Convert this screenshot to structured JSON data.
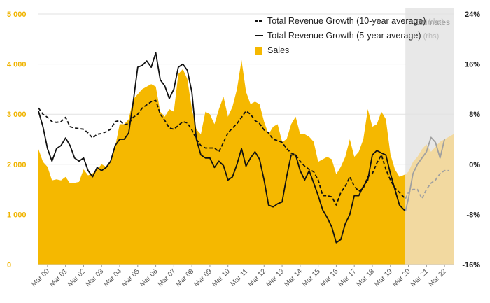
{
  "chart_data": {
    "type": "area",
    "title": "",
    "estimates_label": "Estimates",
    "estimates_start": 2020.33,
    "estimates_end": 2023.0,
    "x_range": [
      2000.0,
      2023.0
    ],
    "x_tick_labels": [
      "Mar 00",
      "Mar 01",
      "Mar 02",
      "Mar 03",
      "Mar 04",
      "Mar 05",
      "Mar 06",
      "Mar 07",
      "Mar 08",
      "Mar 09",
      "Mar 10",
      "Mar 11",
      "Mar 12",
      "Mar 13",
      "Mar 14",
      "Mar 15",
      "Mar 16",
      "Mar 17",
      "Mar 18",
      "Mar 19",
      "Mar 20",
      "Mar 21",
      "Mar 22"
    ],
    "left_axis": {
      "ylim": [
        0,
        5000
      ],
      "ticks": [
        "0",
        "1 000",
        "2 000",
        "3 000",
        "4 000",
        "5 000"
      ],
      "color": "#f0b400"
    },
    "right_axis": {
      "ylim": [
        -16,
        24
      ],
      "ticks": [
        "-16%",
        "-8%",
        "0%",
        "8%",
        "16%",
        "24%"
      ],
      "color": "#222222"
    },
    "legend": [
      {
        "label": "Total Revenue Growth (10-year average)",
        "suffix": "(rhs)",
        "style": "dashed"
      },
      {
        "label": "Total Revenue Growth (5-year average)",
        "suffix": "(rhs)",
        "style": "solid"
      },
      {
        "label": "Sales",
        "suffix": "",
        "style": "area"
      }
    ],
    "colors": {
      "sales": "#f5b800",
      "sales_estimate": "#f2d9a0",
      "line": "#111111",
      "line_estimate": "#a0a0a0",
      "estimates_band": "#e8e8e8"
    },
    "series": [
      {
        "name": "Sales",
        "axis": "left",
        "points": [
          [
            2000.0,
            2300
          ],
          [
            2000.25,
            2050
          ],
          [
            2000.5,
            1950
          ],
          [
            2000.75,
            1680
          ],
          [
            2001.0,
            1700
          ],
          [
            2001.25,
            1680
          ],
          [
            2001.5,
            1750
          ],
          [
            2001.75,
            1620
          ],
          [
            2002.0,
            1630
          ],
          [
            2002.25,
            1650
          ],
          [
            2002.5,
            1900
          ],
          [
            2002.75,
            1780
          ],
          [
            2003.0,
            1820
          ],
          [
            2003.25,
            1900
          ],
          [
            2003.5,
            2000
          ],
          [
            2003.75,
            1950
          ],
          [
            2004.0,
            2050
          ],
          [
            2004.25,
            2350
          ],
          [
            2004.5,
            2800
          ],
          [
            2004.75,
            2800
          ],
          [
            2005.0,
            2900
          ],
          [
            2005.25,
            3300
          ],
          [
            2005.5,
            3400
          ],
          [
            2005.75,
            3500
          ],
          [
            2006.0,
            3550
          ],
          [
            2006.25,
            3600
          ],
          [
            2006.5,
            3550
          ],
          [
            2006.75,
            3050
          ],
          [
            2007.0,
            2950
          ],
          [
            2007.25,
            3100
          ],
          [
            2007.5,
            3050
          ],
          [
            2007.75,
            3800
          ],
          [
            2008.0,
            3900
          ],
          [
            2008.25,
            3700
          ],
          [
            2008.5,
            3100
          ],
          [
            2008.75,
            2700
          ],
          [
            2009.0,
            2600
          ],
          [
            2009.25,
            3050
          ],
          [
            2009.5,
            3000
          ],
          [
            2009.75,
            2800
          ],
          [
            2010.0,
            3100
          ],
          [
            2010.25,
            3350
          ],
          [
            2010.5,
            2950
          ],
          [
            2010.75,
            3150
          ],
          [
            2011.0,
            3500
          ],
          [
            2011.25,
            4080
          ],
          [
            2011.5,
            3450
          ],
          [
            2011.75,
            3200
          ],
          [
            2012.0,
            3250
          ],
          [
            2012.25,
            3200
          ],
          [
            2012.5,
            2850
          ],
          [
            2012.75,
            2600
          ],
          [
            2013.0,
            2750
          ],
          [
            2013.25,
            2800
          ],
          [
            2013.5,
            2450
          ],
          [
            2013.75,
            2500
          ],
          [
            2014.0,
            2800
          ],
          [
            2014.25,
            2950
          ],
          [
            2014.5,
            2600
          ],
          [
            2014.75,
            2600
          ],
          [
            2015.0,
            2550
          ],
          [
            2015.25,
            2450
          ],
          [
            2015.5,
            2050
          ],
          [
            2015.75,
            2100
          ],
          [
            2016.0,
            2150
          ],
          [
            2016.25,
            2100
          ],
          [
            2016.5,
            1800
          ],
          [
            2016.75,
            1950
          ],
          [
            2017.0,
            2150
          ],
          [
            2017.25,
            2500
          ],
          [
            2017.5,
            2150
          ],
          [
            2017.75,
            2250
          ],
          [
            2018.0,
            2500
          ],
          [
            2018.25,
            3100
          ],
          [
            2018.5,
            2750
          ],
          [
            2018.75,
            2800
          ],
          [
            2019.0,
            3050
          ],
          [
            2019.25,
            2900
          ],
          [
            2019.5,
            2200
          ],
          [
            2019.75,
            1900
          ],
          [
            2020.0,
            1750
          ],
          [
            2020.33,
            1800
          ]
        ]
      },
      {
        "name": "Sales",
        "estimate": true,
        "axis": "left",
        "points": [
          [
            2020.33,
            1800
          ],
          [
            2020.5,
            1850
          ],
          [
            2020.75,
            2050
          ],
          [
            2021.0,
            2150
          ],
          [
            2021.25,
            2300
          ],
          [
            2021.5,
            2400
          ],
          [
            2021.75,
            2250
          ],
          [
            2022.0,
            2350
          ],
          [
            2022.25,
            2450
          ],
          [
            2022.5,
            2500
          ],
          [
            2022.75,
            2550
          ],
          [
            2023.0,
            2600
          ]
        ]
      },
      {
        "name": "Total Revenue Growth (10-year average)",
        "axis": "right",
        "points": [
          [
            2000.0,
            9.0
          ],
          [
            2000.25,
            8.0
          ],
          [
            2000.5,
            7.5
          ],
          [
            2000.75,
            6.8
          ],
          [
            2001.0,
            6.7
          ],
          [
            2001.25,
            6.8
          ],
          [
            2001.5,
            7.5
          ],
          [
            2001.75,
            6.0
          ],
          [
            2002.0,
            5.8
          ],
          [
            2002.25,
            5.7
          ],
          [
            2002.5,
            5.6
          ],
          [
            2002.75,
            5.0
          ],
          [
            2003.0,
            4.2
          ],
          [
            2003.25,
            4.8
          ],
          [
            2003.5,
            4.9
          ],
          [
            2003.75,
            5.2
          ],
          [
            2004.0,
            5.6
          ],
          [
            2004.25,
            6.8
          ],
          [
            2004.5,
            7.0
          ],
          [
            2004.75,
            6.3
          ],
          [
            2005.0,
            6.5
          ],
          [
            2005.25,
            7.5
          ],
          [
            2005.5,
            8.0
          ],
          [
            2005.75,
            9.0
          ],
          [
            2006.0,
            9.5
          ],
          [
            2006.25,
            10.0
          ],
          [
            2006.5,
            10.2
          ],
          [
            2006.75,
            8.0
          ],
          [
            2007.0,
            7.0
          ],
          [
            2007.25,
            5.8
          ],
          [
            2007.5,
            5.6
          ],
          [
            2007.75,
            6.2
          ],
          [
            2008.0,
            6.8
          ],
          [
            2008.25,
            6.6
          ],
          [
            2008.5,
            5.5
          ],
          [
            2008.75,
            4.0
          ],
          [
            2009.0,
            3.0
          ],
          [
            2009.25,
            2.6
          ],
          [
            2009.5,
            2.6
          ],
          [
            2009.75,
            2.6
          ],
          [
            2010.0,
            2.0
          ],
          [
            2010.25,
            3.5
          ],
          [
            2010.5,
            5.0
          ],
          [
            2010.75,
            5.8
          ],
          [
            2011.0,
            6.5
          ],
          [
            2011.25,
            7.5
          ],
          [
            2011.5,
            8.5
          ],
          [
            2011.75,
            8.0
          ],
          [
            2012.0,
            7.0
          ],
          [
            2012.25,
            6.5
          ],
          [
            2012.5,
            5.5
          ],
          [
            2012.75,
            5.0
          ],
          [
            2013.0,
            4.0
          ],
          [
            2013.25,
            3.8
          ],
          [
            2013.5,
            3.5
          ],
          [
            2013.75,
            2.5
          ],
          [
            2014.0,
            1.8
          ],
          [
            2014.25,
            1.5
          ],
          [
            2014.5,
            0.5
          ],
          [
            2014.75,
            -0.3
          ],
          [
            2015.0,
            -0.8
          ],
          [
            2015.25,
            -1.2
          ],
          [
            2015.5,
            -2.5
          ],
          [
            2015.75,
            -5.0
          ],
          [
            2016.0,
            -5.0
          ],
          [
            2016.25,
            -5.2
          ],
          [
            2016.5,
            -6.5
          ],
          [
            2016.75,
            -4.5
          ],
          [
            2017.0,
            -3.5
          ],
          [
            2017.25,
            -2.0
          ],
          [
            2017.5,
            -3.5
          ],
          [
            2017.75,
            -4.3
          ],
          [
            2018.0,
            -3.8
          ],
          [
            2018.25,
            -2.0
          ],
          [
            2018.5,
            -1.5
          ],
          [
            2018.75,
            0.2
          ],
          [
            2019.0,
            1.5
          ],
          [
            2019.25,
            -0.8
          ],
          [
            2019.5,
            -2.5
          ],
          [
            2019.75,
            -3.8
          ],
          [
            2020.0,
            -4.5
          ],
          [
            2020.33,
            -5.5
          ]
        ]
      },
      {
        "name": "Total Revenue Growth (10-year average)",
        "estimate": true,
        "axis": "right",
        "points": [
          [
            2020.33,
            -5.5
          ],
          [
            2020.5,
            -4.5
          ],
          [
            2020.75,
            -4.0
          ],
          [
            2021.0,
            -4.0
          ],
          [
            2021.25,
            -5.5
          ],
          [
            2021.5,
            -4.0
          ],
          [
            2021.75,
            -3.0
          ],
          [
            2022.0,
            -2.5
          ],
          [
            2022.25,
            -1.5
          ],
          [
            2022.5,
            -1.0
          ],
          [
            2022.75,
            -1.0
          ]
        ]
      },
      {
        "name": "Total Revenue Growth (5-year average)",
        "axis": "right",
        "points": [
          [
            2000.0,
            8.5
          ],
          [
            2000.25,
            6.0
          ],
          [
            2000.5,
            2.5
          ],
          [
            2000.75,
            0.5
          ],
          [
            2001.0,
            2.5
          ],
          [
            2001.25,
            3.0
          ],
          [
            2001.5,
            4.2
          ],
          [
            2001.75,
            3.0
          ],
          [
            2002.0,
            1.0
          ],
          [
            2002.25,
            0.5
          ],
          [
            2002.5,
            1.0
          ],
          [
            2002.75,
            -1.0
          ],
          [
            2003.0,
            -2.0
          ],
          [
            2003.25,
            -0.5
          ],
          [
            2003.5,
            -1.0
          ],
          [
            2003.75,
            -0.5
          ],
          [
            2004.0,
            0.5
          ],
          [
            2004.25,
            3.0
          ],
          [
            2004.5,
            4.0
          ],
          [
            2004.75,
            4.0
          ],
          [
            2005.0,
            5.0
          ],
          [
            2005.25,
            10.0
          ],
          [
            2005.5,
            15.5
          ],
          [
            2005.75,
            15.8
          ],
          [
            2006.0,
            16.5
          ],
          [
            2006.25,
            15.5
          ],
          [
            2006.5,
            17.8
          ],
          [
            2006.75,
            13.5
          ],
          [
            2007.0,
            12.5
          ],
          [
            2007.25,
            10.5
          ],
          [
            2007.5,
            12.0
          ],
          [
            2007.75,
            15.5
          ],
          [
            2008.0,
            16.0
          ],
          [
            2008.25,
            15.0
          ],
          [
            2008.5,
            11.5
          ],
          [
            2008.75,
            4.0
          ],
          [
            2009.0,
            1.5
          ],
          [
            2009.25,
            1.0
          ],
          [
            2009.5,
            1.0
          ],
          [
            2009.75,
            -0.5
          ],
          [
            2010.0,
            0.5
          ],
          [
            2010.25,
            -0.2
          ],
          [
            2010.5,
            -2.5
          ],
          [
            2010.75,
            -2.0
          ],
          [
            2011.0,
            0.0
          ],
          [
            2011.25,
            2.5
          ],
          [
            2011.5,
            -0.3
          ],
          [
            2011.75,
            1.0
          ],
          [
            2012.0,
            2.0
          ],
          [
            2012.25,
            0.8
          ],
          [
            2012.5,
            -2.5
          ],
          [
            2012.75,
            -6.5
          ],
          [
            2013.0,
            -6.8
          ],
          [
            2013.25,
            -6.3
          ],
          [
            2013.5,
            -6.0
          ],
          [
            2013.75,
            -2.0
          ],
          [
            2014.0,
            1.5
          ],
          [
            2014.25,
            1.5
          ],
          [
            2014.5,
            -1.0
          ],
          [
            2014.75,
            -2.5
          ],
          [
            2015.0,
            -1.0
          ],
          [
            2015.25,
            -3.0
          ],
          [
            2015.5,
            -5.0
          ],
          [
            2015.75,
            -7.3
          ],
          [
            2016.0,
            -8.5
          ],
          [
            2016.25,
            -10.0
          ],
          [
            2016.5,
            -12.5
          ],
          [
            2016.75,
            -12.0
          ],
          [
            2017.0,
            -9.5
          ],
          [
            2017.25,
            -8.0
          ],
          [
            2017.5,
            -5.0
          ],
          [
            2017.75,
            -5.0
          ],
          [
            2018.0,
            -3.5
          ],
          [
            2018.25,
            -2.5
          ],
          [
            2018.5,
            1.5
          ],
          [
            2018.75,
            2.2
          ],
          [
            2019.0,
            1.8
          ],
          [
            2019.25,
            1.5
          ],
          [
            2019.5,
            -1.5
          ],
          [
            2019.75,
            -4.0
          ],
          [
            2020.0,
            -6.5
          ],
          [
            2020.33,
            -7.5
          ]
        ]
      },
      {
        "name": "Total Revenue Growth (5-year average)",
        "estimate": true,
        "axis": "right",
        "points": [
          [
            2020.33,
            -7.5
          ],
          [
            2020.5,
            -5.5
          ],
          [
            2020.75,
            -1.5
          ],
          [
            2021.0,
            0.0
          ],
          [
            2021.25,
            1.0
          ],
          [
            2021.5,
            2.0
          ],
          [
            2021.75,
            4.3
          ],
          [
            2022.0,
            3.5
          ],
          [
            2022.25,
            1.0
          ],
          [
            2022.5,
            4.0
          ]
        ]
      }
    ]
  }
}
